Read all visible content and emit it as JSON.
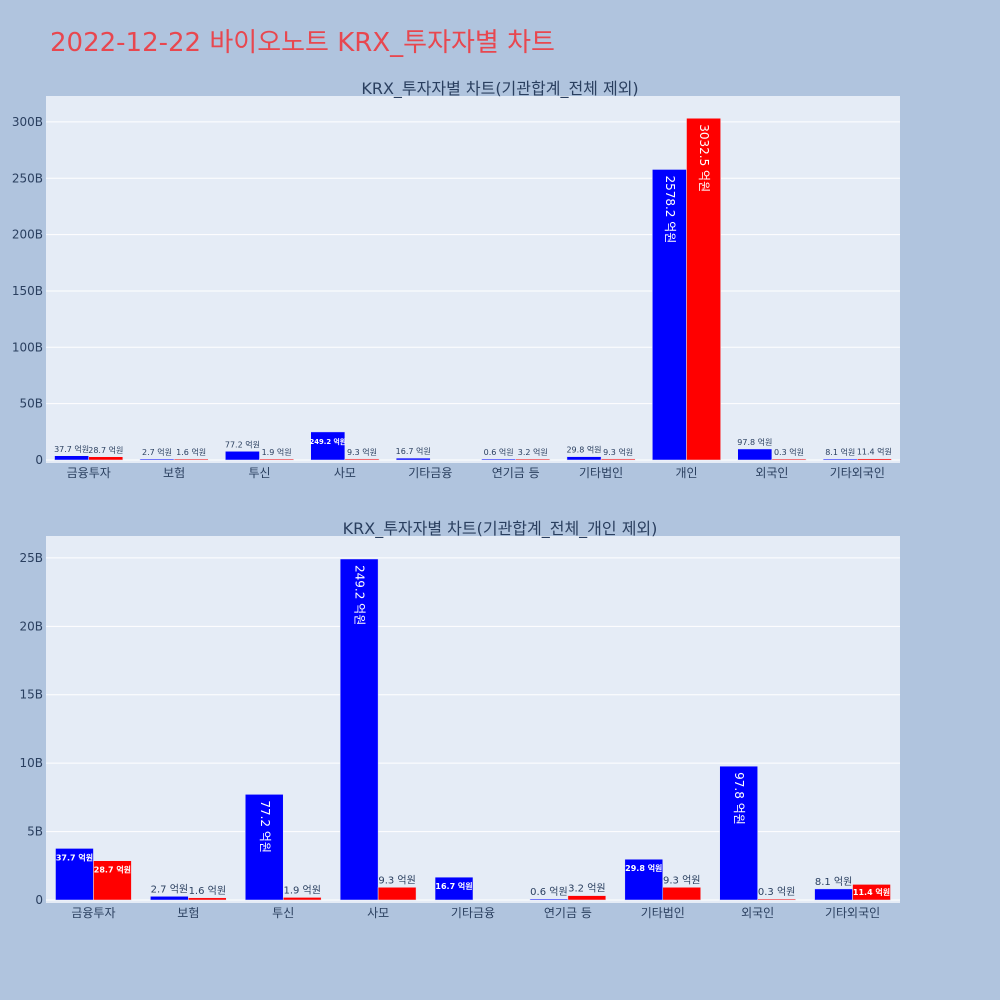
{
  "title": "2022-12-22 바이오노트 KRX_투자자별 차트",
  "colors": {
    "buy": "#0000ff",
    "sell": "#ff0000",
    "plot_bg": "#e5ecf6",
    "page_bg": "#b0c4de",
    "title": "#e8474f"
  },
  "chart_data": [
    {
      "type": "bar",
      "title": "KRX_투자자별 차트(기관합계_전체 제외)",
      "categories": [
        "금융투자",
        "보험",
        "투신",
        "사모",
        "기타금융",
        "연기금 등",
        "기타법인",
        "개인",
        "외국인",
        "기타외국인"
      ],
      "series": [
        {
          "values": [
            3770000000,
            270000000,
            7720000000,
            24920000000,
            1670000000,
            60000000,
            2980000000,
            257820000000,
            9780000000,
            810000000
          ],
          "labels": [
            "37.7 억원",
            "2.7 억원",
            "77.2 억원",
            "249.2 억원",
            "16.7 억원",
            "0.6 억원",
            "29.8 억원",
            "2578.2 억원",
            "97.8 억원",
            "8.1 억원"
          ]
        },
        {
          "values": [
            2870000000,
            160000000,
            190000000,
            930000000,
            0,
            320000000,
            930000000,
            303250000000,
            30000000,
            1140000000
          ],
          "labels": [
            "28.7 억원",
            "1.6 억원",
            "1.9 억원",
            "9.3 억원",
            "",
            "3.2 억원",
            "9.3 억원",
            "3032.5 억원",
            "0.3 억원",
            "11.4 억원"
          ]
        }
      ],
      "yticks": [
        "0",
        "50B",
        "100B",
        "150B",
        "200B",
        "250B",
        "300B"
      ],
      "ylim": [
        0,
        323000000000
      ],
      "grid": true
    },
    {
      "type": "bar",
      "title": "KRX_투자자별 차트(기관합계_전체_개인 제외)",
      "categories": [
        "금융투자",
        "보험",
        "투신",
        "사모",
        "기타금융",
        "연기금 등",
        "기타법인",
        "외국인",
        "기타외국인"
      ],
      "series": [
        {
          "values": [
            3770000000,
            270000000,
            7720000000,
            24920000000,
            1670000000,
            60000000,
            2980000000,
            9780000000,
            810000000
          ],
          "labels": [
            "37.7 억원",
            "2.7 억원",
            "77.2 억원",
            "249.2 억원",
            "16.7 억원",
            "0.6 억원",
            "29.8 억원",
            "97.8 억원",
            "8.1 억원"
          ]
        },
        {
          "values": [
            2870000000,
            160000000,
            190000000,
            930000000,
            0,
            320000000,
            930000000,
            30000000,
            1140000000
          ],
          "labels": [
            "28.7 억원",
            "1.6 억원",
            "1.9 억원",
            "9.3 억원",
            "",
            "3.2 억원",
            "9.3 억원",
            "0.3 억원",
            "11.4 억원"
          ]
        }
      ],
      "yticks": [
        "0",
        "5B",
        "10B",
        "15B",
        "20B",
        "25B"
      ],
      "ylim": [
        0,
        26600000000
      ],
      "grid": true
    }
  ]
}
